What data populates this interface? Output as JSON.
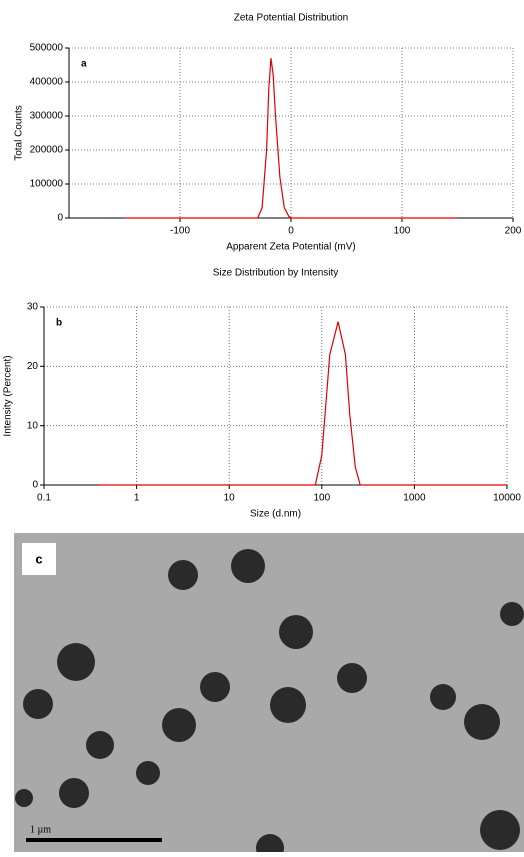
{
  "chart_data": [
    {
      "type": "line",
      "title": "Zeta Potential Distribution",
      "panel_label": "a",
      "x_label": "Apparent Zeta Potential (mV)",
      "y_label": "Total Counts",
      "x": [
        -150,
        -40,
        -30,
        -26,
        -22,
        -20,
        -18,
        -16,
        -14,
        -10,
        -6,
        -2,
        0,
        150
      ],
      "values": [
        0,
        0,
        0,
        30000,
        200000,
        380000,
        470000,
        420000,
        300000,
        120000,
        30000,
        5000,
        0,
        0
      ],
      "color": "#e00000",
      "xlim": [
        -200,
        200
      ],
      "xticks": [
        -100,
        0,
        100,
        200
      ],
      "ylim": [
        0,
        500000
      ],
      "yticks": [
        0,
        100000,
        200000,
        300000,
        400000,
        500000
      ],
      "grid": true
    },
    {
      "type": "line",
      "title": "Size Distribution by Intensity",
      "panel_label": "b",
      "x_label": "Size (d.nm)",
      "y_label": "Intensity (Percent)",
      "xscale": "log",
      "x": [
        0.4,
        85,
        100,
        122,
        150,
        180,
        200,
        230,
        260,
        10000
      ],
      "values": [
        0,
        0,
        5,
        22,
        27.5,
        22,
        12,
        3,
        0,
        0
      ],
      "color": "#e00000",
      "xlim": [
        0.1,
        10000
      ],
      "xticks": [
        0.1,
        1,
        10,
        100,
        1000,
        10000
      ],
      "ylim": [
        0,
        30
      ],
      "yticks": [
        0,
        10,
        20,
        30
      ],
      "grid": true
    }
  ],
  "image_panel": {
    "label": "c",
    "scale_bar": "1 µm"
  }
}
